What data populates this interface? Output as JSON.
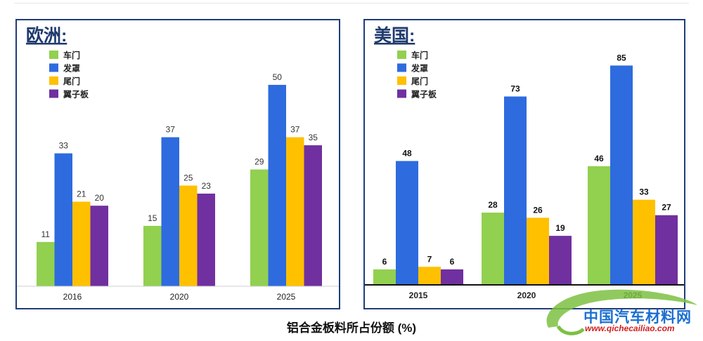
{
  "caption": "铝合金板料所占份额 (%)",
  "watermark": {
    "name": "中国汽车材料网",
    "url": "www.qichecailiao.com"
  },
  "colors": {
    "车门": "#92d050",
    "发罩": "#2e6bde",
    "尾门": "#ffc000",
    "翼子板": "#7030a0"
  },
  "chart_data": [
    {
      "type": "bar",
      "title": "欧洲:",
      "categories": [
        "2016",
        "2020",
        "2025"
      ],
      "series": [
        {
          "name": "车门",
          "values": [
            11,
            15,
            29
          ]
        },
        {
          "name": "发罩",
          "values": [
            33,
            37,
            50
          ]
        },
        {
          "name": "尾门",
          "values": [
            21,
            25,
            37
          ]
        },
        {
          "name": "翼子板",
          "values": [
            20,
            23,
            35
          ]
        }
      ],
      "ylim": [
        0,
        58
      ],
      "grid": false,
      "legend": "top-left"
    },
    {
      "type": "bar",
      "title": "美国:",
      "categories": [
        "2015",
        "2020",
        "2025"
      ],
      "series": [
        {
          "name": "车门",
          "values": [
            6,
            28,
            46
          ]
        },
        {
          "name": "发罩",
          "values": [
            48,
            73,
            85
          ]
        },
        {
          "name": "尾门",
          "values": [
            7,
            26,
            33
          ]
        },
        {
          "name": "翼子板",
          "values": [
            6,
            19,
            27
          ]
        }
      ],
      "ylim": [
        0,
        90
      ],
      "grid": false,
      "legend": "top-left"
    }
  ]
}
